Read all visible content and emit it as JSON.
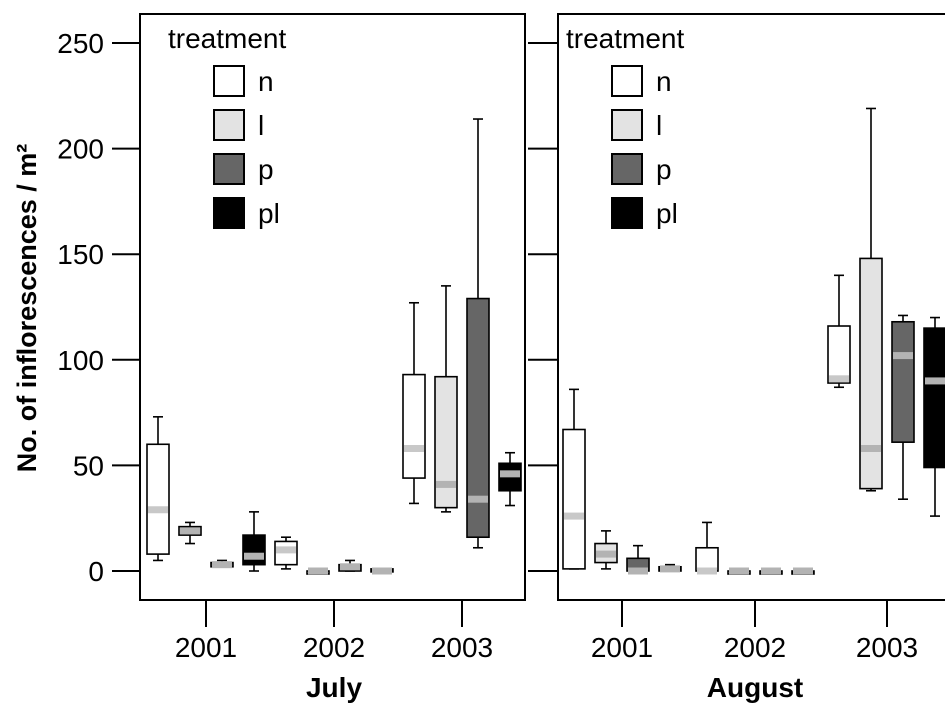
{
  "chart_data": {
    "type": "box",
    "ylabel": "No. of inflorescences / m²",
    "ylim": [
      0,
      250
    ],
    "yticks": [
      0,
      50,
      100,
      150,
      200,
      250
    ],
    "legend": {
      "title": "treatment",
      "placement": "top-left",
      "entries": [
        {
          "label": "n",
          "color": "#ffffff"
        },
        {
          "label": "l",
          "color": "#e3e3e3"
        },
        {
          "label": "p",
          "color": "#666666"
        },
        {
          "label": "pl",
          "color": "#000000"
        }
      ]
    },
    "categories": [
      "2001",
      "2002",
      "2003"
    ],
    "panels": [
      {
        "title": "July",
        "series": [
          {
            "name": "n",
            "boxes": [
              {
                "year": "2001",
                "min": 5,
                "q1": 8,
                "median": 29,
                "q3": 60,
                "max": 73
              },
              {
                "year": "2002",
                "min": 1,
                "q1": 3,
                "median": 10,
                "q3": 14,
                "max": 16
              },
              {
                "year": "2003",
                "min": 32,
                "q1": 44,
                "median": 58,
                "q3": 93,
                "max": 127
              }
            ]
          },
          {
            "name": "l",
            "boxes": [
              {
                "year": "2001",
                "min": 13,
                "q1": 17,
                "median": 19,
                "q3": 21,
                "max": 23
              },
              {
                "year": "2002",
                "min": 0,
                "q1": 0,
                "median": 0,
                "q3": 0,
                "max": 0
              },
              {
                "year": "2003",
                "min": 28,
                "q1": 30,
                "median": 41,
                "q3": 92,
                "max": 135
              }
            ]
          },
          {
            "name": "p",
            "boxes": [
              {
                "year": "2001",
                "min": 2,
                "q1": 2,
                "median": 3,
                "q3": 4,
                "max": 5
              },
              {
                "year": "2002",
                "min": 0,
                "q1": 0,
                "median": 2,
                "q3": 3,
                "max": 5
              },
              {
                "year": "2003",
                "min": 11,
                "q1": 16,
                "median": 34,
                "q3": 129,
                "max": 214
              }
            ]
          },
          {
            "name": "pl",
            "boxes": [
              {
                "year": "2001",
                "min": 0,
                "q1": 3,
                "median": 7,
                "q3": 17,
                "max": 28
              },
              {
                "year": "2002",
                "min": 0,
                "q1": 0,
                "median": 0,
                "q3": 1,
                "max": 1
              },
              {
                "year": "2003",
                "min": 31,
                "q1": 38,
                "median": 46,
                "q3": 51,
                "max": 56
              }
            ]
          }
        ]
      },
      {
        "title": "August",
        "series": [
          {
            "name": "n",
            "boxes": [
              {
                "year": "2001",
                "min": 1,
                "q1": 1,
                "median": 26,
                "q3": 67,
                "max": 86
              },
              {
                "year": "2002",
                "min": 0,
                "q1": 0,
                "median": 0,
                "q3": 11,
                "max": 23
              },
              {
                "year": "2003",
                "min": 87,
                "q1": 89,
                "median": 91,
                "q3": 116,
                "max": 140
              }
            ]
          },
          {
            "name": "l",
            "boxes": [
              {
                "year": "2001",
                "min": 1,
                "q1": 4,
                "median": 8,
                "q3": 13,
                "max": 19
              },
              {
                "year": "2002",
                "min": 0,
                "q1": 0,
                "median": 0,
                "q3": 0,
                "max": 0
              },
              {
                "year": "2003",
                "min": 38,
                "q1": 39,
                "median": 58,
                "q3": 148,
                "max": 219
              }
            ]
          },
          {
            "name": "p",
            "boxes": [
              {
                "year": "2001",
                "min": 0,
                "q1": 0,
                "median": 0,
                "q3": 6,
                "max": 12
              },
              {
                "year": "2002",
                "min": 0,
                "q1": 0,
                "median": 0,
                "q3": 0,
                "max": 0
              },
              {
                "year": "2003",
                "min": 34,
                "q1": 61,
                "median": 102,
                "q3": 118,
                "max": 121
              }
            ]
          },
          {
            "name": "pl",
            "boxes": [
              {
                "year": "2001",
                "min": 0,
                "q1": 0,
                "median": 1,
                "q3": 2,
                "max": 3
              },
              {
                "year": "2002",
                "min": 0,
                "q1": 0,
                "median": 0,
                "q3": 0,
                "max": 0
              },
              {
                "year": "2003",
                "min": 26,
                "q1": 49,
                "median": 90,
                "q3": 115,
                "max": 120
              }
            ]
          }
        ]
      }
    ]
  }
}
